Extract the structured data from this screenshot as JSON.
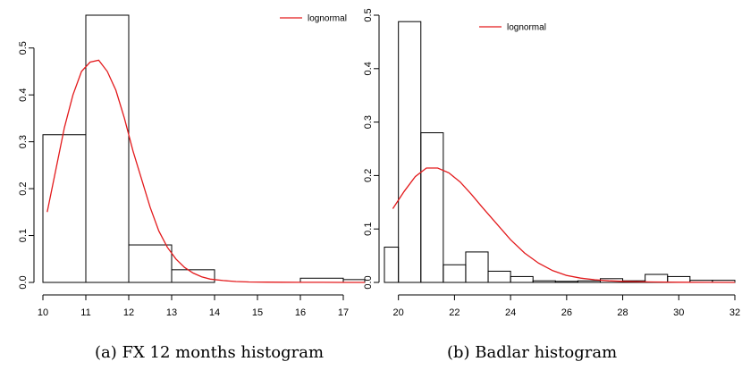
{
  "chart_data": [
    {
      "type": "bar",
      "title": "",
      "xlabel": "",
      "ylabel": "",
      "xlim": [
        10,
        17.5
      ],
      "ylim": [
        0,
        0.57
      ],
      "xticks": [
        10,
        11,
        12,
        13,
        14,
        15,
        16,
        17
      ],
      "yticks": [
        0.0,
        0.1,
        0.2,
        0.3,
        0.4,
        0.5
      ],
      "bins": [
        {
          "x0": 10,
          "x1": 11,
          "value": 0.315
        },
        {
          "x0": 11,
          "x1": 12,
          "value": 0.57
        },
        {
          "x0": 12,
          "x1": 13,
          "value": 0.08
        },
        {
          "x0": 13,
          "x1": 14,
          "value": 0.027
        },
        {
          "x0": 14,
          "x1": 15,
          "value": 0.0
        },
        {
          "x0": 15,
          "x1": 16,
          "value": 0.0
        },
        {
          "x0": 16,
          "x1": 17,
          "value": 0.009
        },
        {
          "x0": 17,
          "x1": 17.5,
          "value": 0.006
        }
      ],
      "series": [
        {
          "name": "lognormal",
          "color": "#e31a1c",
          "x": [
            10.1,
            10.3,
            10.5,
            10.7,
            10.9,
            11.1,
            11.3,
            11.5,
            11.7,
            11.9,
            12.1,
            12.3,
            12.5,
            12.7,
            12.9,
            13.1,
            13.3,
            13.5,
            13.7,
            13.9,
            14.2,
            14.5,
            14.8,
            15.2,
            15.6,
            16.0,
            16.5,
            17.0,
            17.5
          ],
          "y": [
            0.15,
            0.24,
            0.33,
            0.4,
            0.45,
            0.47,
            0.474,
            0.45,
            0.41,
            0.35,
            0.28,
            0.22,
            0.16,
            0.11,
            0.075,
            0.05,
            0.032,
            0.02,
            0.012,
            0.007,
            0.004,
            0.002,
            0.001,
            0.0005,
            0.0003,
            0.0002,
            0.0001,
            0.0,
            0.0
          ]
        }
      ],
      "legend": "top-right",
      "caption": "(a) FX 12 months histogram"
    },
    {
      "type": "bar",
      "title": "",
      "xlabel": "",
      "ylabel": "",
      "xlim": [
        19.5,
        32
      ],
      "ylim": [
        0,
        0.5
      ],
      "xticks": [
        20,
        22,
        24,
        26,
        28,
        30,
        32
      ],
      "yticks": [
        0.0,
        0.1,
        0.2,
        0.3,
        0.4,
        0.5
      ],
      "bins": [
        {
          "x0": 19.5,
          "x1": 20.0,
          "value": 0.066
        },
        {
          "x0": 20.0,
          "x1": 20.8,
          "value": 0.488
        },
        {
          "x0": 20.8,
          "x1": 21.6,
          "value": 0.28
        },
        {
          "x0": 21.6,
          "x1": 22.4,
          "value": 0.033
        },
        {
          "x0": 22.4,
          "x1": 23.2,
          "value": 0.057
        },
        {
          "x0": 23.2,
          "x1": 24.0,
          "value": 0.021
        },
        {
          "x0": 24.0,
          "x1": 24.8,
          "value": 0.011
        },
        {
          "x0": 24.8,
          "x1": 25.6,
          "value": 0.003
        },
        {
          "x0": 25.6,
          "x1": 26.4,
          "value": 0.002
        },
        {
          "x0": 26.4,
          "x1": 27.2,
          "value": 0.003
        },
        {
          "x0": 27.2,
          "x1": 28.0,
          "value": 0.007
        },
        {
          "x0": 28.0,
          "x1": 28.8,
          "value": 0.003
        },
        {
          "x0": 28.8,
          "x1": 29.6,
          "value": 0.015
        },
        {
          "x0": 29.6,
          "x1": 30.4,
          "value": 0.011
        },
        {
          "x0": 30.4,
          "x1": 31.2,
          "value": 0.004
        },
        {
          "x0": 31.2,
          "x1": 32.0,
          "value": 0.004
        }
      ],
      "series": [
        {
          "name": "lognormal",
          "color": "#e31a1c",
          "x": [
            19.8,
            20.2,
            20.6,
            21.0,
            21.4,
            21.8,
            22.2,
            22.6,
            23.0,
            23.5,
            24.0,
            24.5,
            25.0,
            25.5,
            26.0,
            26.5,
            27.0,
            27.5,
            28.0,
            29.0,
            30.0,
            31.0,
            32.0
          ],
          "y": [
            0.138,
            0.17,
            0.198,
            0.214,
            0.214,
            0.205,
            0.188,
            0.165,
            0.14,
            0.11,
            0.08,
            0.055,
            0.036,
            0.022,
            0.013,
            0.008,
            0.005,
            0.003,
            0.002,
            0.0008,
            0.0003,
            0.0001,
            0.0
          ]
        }
      ],
      "legend": "top-right",
      "caption": "(b) Badlar histogram"
    }
  ]
}
